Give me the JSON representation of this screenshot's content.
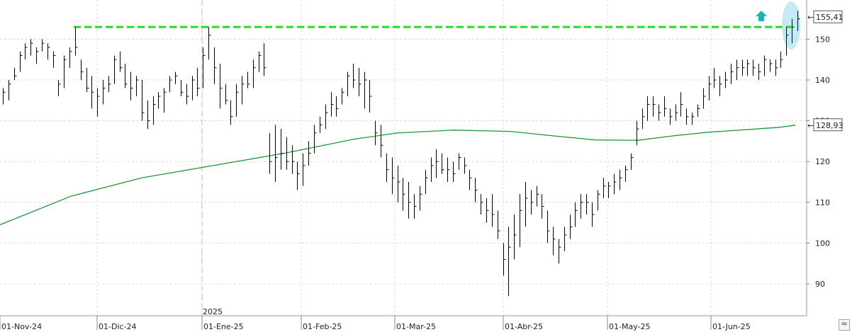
{
  "chart_data": {
    "type": "ohlc",
    "x_tick_labels": [
      "01-Nov-24",
      "01-Dic-24",
      "01-Ene-25",
      "01-Feb-25",
      "01-Mar-25",
      "01-Abr-25",
      "01-May-25",
      "01-Jun-25"
    ],
    "year_label": "2025",
    "y_tick_labels": [
      90,
      100,
      110,
      120,
      130,
      140,
      150
    ],
    "ylim": [
      82,
      160
    ],
    "last_price_label": "155,41",
    "ma_value_label": "128,93",
    "resistance_level": 153,
    "colors": {
      "bars": "#000000",
      "moving_average": "#1a9a3a",
      "resistance": "#22dd22",
      "breakout_arrow": "#1bb3b3",
      "highlight": "#b8e6f4"
    },
    "bars": [
      [
        138,
        134,
        137
      ],
      [
        140,
        135,
        139
      ],
      [
        143,
        140,
        141
      ],
      [
        147,
        142,
        146
      ],
      [
        149,
        145,
        148
      ],
      [
        150,
        146,
        149
      ],
      [
        148,
        144,
        147
      ],
      [
        150,
        147,
        149
      ],
      [
        149,
        145,
        148
      ],
      [
        147,
        143,
        146
      ],
      [
        140,
        136,
        139
      ],
      [
        146,
        138,
        145
      ],
      [
        148,
        143,
        147
      ],
      [
        153,
        146,
        148
      ],
      [
        145,
        140,
        142
      ],
      [
        143,
        137,
        138
      ],
      [
        141,
        133,
        137
      ],
      [
        138,
        131,
        136
      ],
      [
        140,
        134,
        138
      ],
      [
        141,
        137,
        139
      ],
      [
        146,
        139,
        145
      ],
      [
        147,
        142,
        143
      ],
      [
        144,
        138,
        139
      ],
      [
        142,
        135,
        138
      ],
      [
        141,
        136,
        140
      ],
      [
        140,
        130,
        132
      ],
      [
        135,
        128,
        130
      ],
      [
        136,
        129,
        134
      ],
      [
        137,
        133,
        136
      ],
      [
        138,
        132,
        137
      ],
      [
        141,
        137,
        140
      ],
      [
        142,
        139,
        141
      ],
      [
        140,
        136,
        137
      ],
      [
        139,
        134,
        136
      ],
      [
        141,
        135,
        140
      ],
      [
        143,
        136,
        138
      ],
      [
        148,
        138,
        146
      ],
      [
        153,
        145,
        151
      ],
      [
        148,
        139,
        143
      ],
      [
        144,
        133,
        138
      ],
      [
        139,
        134,
        135
      ],
      [
        135,
        129,
        131
      ],
      [
        139,
        131,
        137
      ],
      [
        141,
        134,
        139
      ],
      [
        142,
        138,
        139
      ],
      [
        145,
        138,
        143
      ],
      [
        147,
        142,
        146
      ],
      [
        149,
        141,
        143
      ],
      [
        127,
        117,
        120
      ],
      [
        129,
        115,
        121
      ],
      [
        128,
        118,
        122
      ],
      [
        126,
        118,
        120
      ],
      [
        124,
        117,
        120
      ],
      [
        120,
        113,
        117
      ],
      [
        122,
        114,
        119
      ],
      [
        125,
        119,
        122
      ],
      [
        129,
        122,
        127
      ],
      [
        131,
        127,
        129
      ],
      [
        134,
        128,
        132
      ],
      [
        137,
        131,
        134
      ],
      [
        136,
        131,
        133
      ],
      [
        138,
        134,
        137
      ],
      [
        142,
        136,
        141
      ],
      [
        144,
        138,
        140
      ],
      [
        143,
        136,
        139
      ],
      [
        142,
        133,
        140
      ],
      [
        140,
        132,
        136
      ],
      [
        130,
        124,
        127
      ],
      [
        129,
        121,
        124
      ],
      [
        122,
        115,
        118
      ],
      [
        121,
        112,
        116
      ],
      [
        119,
        110,
        115
      ],
      [
        116,
        108,
        112
      ],
      [
        115,
        106,
        110
      ],
      [
        112,
        106,
        109
      ],
      [
        114,
        108,
        112
      ],
      [
        118,
        112,
        116
      ],
      [
        121,
        115,
        119
      ],
      [
        123,
        116,
        120
      ],
      [
        122,
        117,
        118
      ],
      [
        121,
        115,
        118
      ],
      [
        120,
        115,
        117
      ],
      [
        122,
        118,
        121
      ],
      [
        121,
        117,
        119
      ],
      [
        118,
        113,
        116
      ],
      [
        116,
        110,
        113
      ],
      [
        112,
        107,
        110
      ],
      [
        111,
        105,
        108
      ],
      [
        112,
        104,
        107
      ],
      [
        108,
        101,
        103
      ],
      [
        100,
        92,
        96
      ],
      [
        104,
        87,
        99
      ],
      [
        107,
        96,
        102
      ],
      [
        112,
        99,
        108
      ],
      [
        115,
        104,
        111
      ],
      [
        113,
        107,
        110
      ],
      [
        114,
        109,
        112
      ],
      [
        112,
        106,
        109
      ],
      [
        108,
        100,
        103
      ],
      [
        104,
        97,
        101
      ],
      [
        101,
        95,
        99
      ],
      [
        104,
        98,
        102
      ],
      [
        107,
        101,
        104
      ],
      [
        110,
        104,
        108
      ],
      [
        112,
        106,
        110
      ],
      [
        112,
        107,
        110
      ],
      [
        110,
        104,
        107
      ],
      [
        113,
        108,
        112
      ],
      [
        116,
        111,
        114
      ],
      [
        115,
        111,
        114
      ],
      [
        117,
        112,
        115
      ],
      [
        118,
        113,
        116
      ],
      [
        119,
        115,
        118
      ],
      [
        122,
        118,
        121
      ],
      [
        130,
        124,
        128
      ],
      [
        133,
        128,
        131
      ],
      [
        136,
        130,
        134
      ],
      [
        136,
        131,
        134
      ],
      [
        134,
        130,
        132
      ],
      [
        136,
        131,
        133
      ],
      [
        133,
        129,
        131
      ],
      [
        134,
        130,
        132
      ],
      [
        137,
        131,
        134
      ],
      [
        133,
        129,
        131
      ],
      [
        132,
        129,
        131
      ],
      [
        134,
        131,
        133
      ],
      [
        138,
        133,
        136
      ],
      [
        141,
        135,
        139
      ],
      [
        143,
        138,
        140
      ],
      [
        141,
        136,
        139
      ],
      [
        142,
        138,
        140
      ],
      [
        144,
        139,
        142
      ],
      [
        145,
        140,
        143
      ],
      [
        145,
        141,
        143
      ],
      [
        145,
        141,
        144
      ],
      [
        145,
        141,
        143
      ],
      [
        144,
        140,
        142
      ],
      [
        146,
        141,
        145
      ],
      [
        145,
        142,
        144
      ],
      [
        145,
        141,
        143
      ],
      [
        147,
        143,
        145
      ],
      [
        153,
        146,
        151
      ],
      [
        155,
        149,
        153
      ],
      [
        157,
        152,
        155
      ]
    ],
    "ma": [
      [
        0,
        104.5
      ],
      [
        100,
        111.5
      ],
      [
        200,
        116
      ],
      [
        300,
        119
      ],
      [
        400,
        122
      ],
      [
        500,
        125.5
      ],
      [
        560,
        127
      ],
      [
        640,
        127.7
      ],
      [
        720,
        127.4
      ],
      [
        780,
        126.3
      ],
      [
        840,
        125.3
      ],
      [
        900,
        125.2
      ],
      [
        950,
        126.3
      ],
      [
        1000,
        127.2
      ],
      [
        1060,
        127.9
      ],
      [
        1100,
        128.4
      ],
      [
        1122,
        128.93
      ]
    ]
  }
}
